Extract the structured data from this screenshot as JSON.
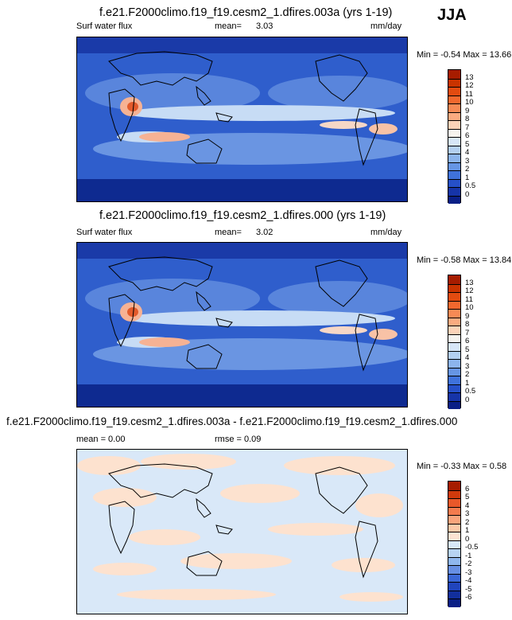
{
  "season": "JJA",
  "panels": [
    {
      "title": "f.e21.F2000climo.f19_f19.cesm2_1.dfires.003a (yrs 1-19)",
      "variable": "Surf water flux",
      "mean_label": "mean=",
      "mean_value": "3.03",
      "units": "mm/day",
      "minmax": "Min = -0.54 Max = 13.66",
      "colorbar": {
        "labels": [
          "13",
          "12",
          "11",
          "10",
          "9",
          "8",
          "7",
          "6",
          "5",
          "4",
          "3",
          "2",
          "1",
          "0.5",
          "0"
        ],
        "colors": [
          "#a61c00",
          "#c93300",
          "#e24b10",
          "#f2682e",
          "#f78a55",
          "#fbab80",
          "#fcd3b8",
          "#f5f3ee",
          "#d7e6f7",
          "#b3cff0",
          "#8cb4ec",
          "#6695e4",
          "#3f72db",
          "#2650c8",
          "#1634a8",
          "#0a1f86"
        ]
      }
    },
    {
      "title": "f.e21.F2000climo.f19_f19.cesm2_1.dfires.000 (yrs 1-19)",
      "variable": "Surf water flux",
      "mean_label": "mean=",
      "mean_value": "3.02",
      "units": "mm/day",
      "minmax": "Min = -0.58 Max = 13.84",
      "colorbar": {
        "labels": [
          "13",
          "12",
          "11",
          "10",
          "9",
          "8",
          "7",
          "6",
          "5",
          "4",
          "3",
          "2",
          "1",
          "0.5",
          "0"
        ],
        "colors": [
          "#a61c00",
          "#c93300",
          "#e24b10",
          "#f2682e",
          "#f78a55",
          "#fbab80",
          "#fcd3b8",
          "#f5f3ee",
          "#d7e6f7",
          "#b3cff0",
          "#8cb4ec",
          "#6695e4",
          "#3f72db",
          "#2650c8",
          "#1634a8",
          "#0a1f86"
        ]
      }
    },
    {
      "title": "f.e21.F2000climo.f19_f19.cesm2_1.dfires.003a - f.e21.F2000climo.f19_f19.cesm2_1.dfires.000",
      "mean_text": "mean =  0.00",
      "rmse_text": "rmse =  0.09",
      "minmax": "Min = -0.33 Max =  0.58",
      "colorbar": {
        "labels": [
          "6",
          "5",
          "4",
          "3",
          "2",
          "1",
          "0",
          "-0.5",
          "-1",
          "-2",
          "-3",
          "-4",
          "-5",
          "-6"
        ],
        "colors": [
          "#a61c00",
          "#d03a0c",
          "#e8582a",
          "#f37b4e",
          "#f9a47c",
          "#fcc9a8",
          "#fce3d2",
          "#d8e8f8",
          "#b7d3f2",
          "#8fb7ee",
          "#678fe3",
          "#3b67d6",
          "#2145bd",
          "#122f9c",
          "#0a1f86"
        ]
      }
    }
  ],
  "colors": {
    "ocean_low": "#2a55c8",
    "ocean_mid": "#7fa8e8",
    "itcz_peak": "#f59070",
    "diff_pos": "#fde2cf",
    "diff_neg": "#d9e8f8"
  }
}
